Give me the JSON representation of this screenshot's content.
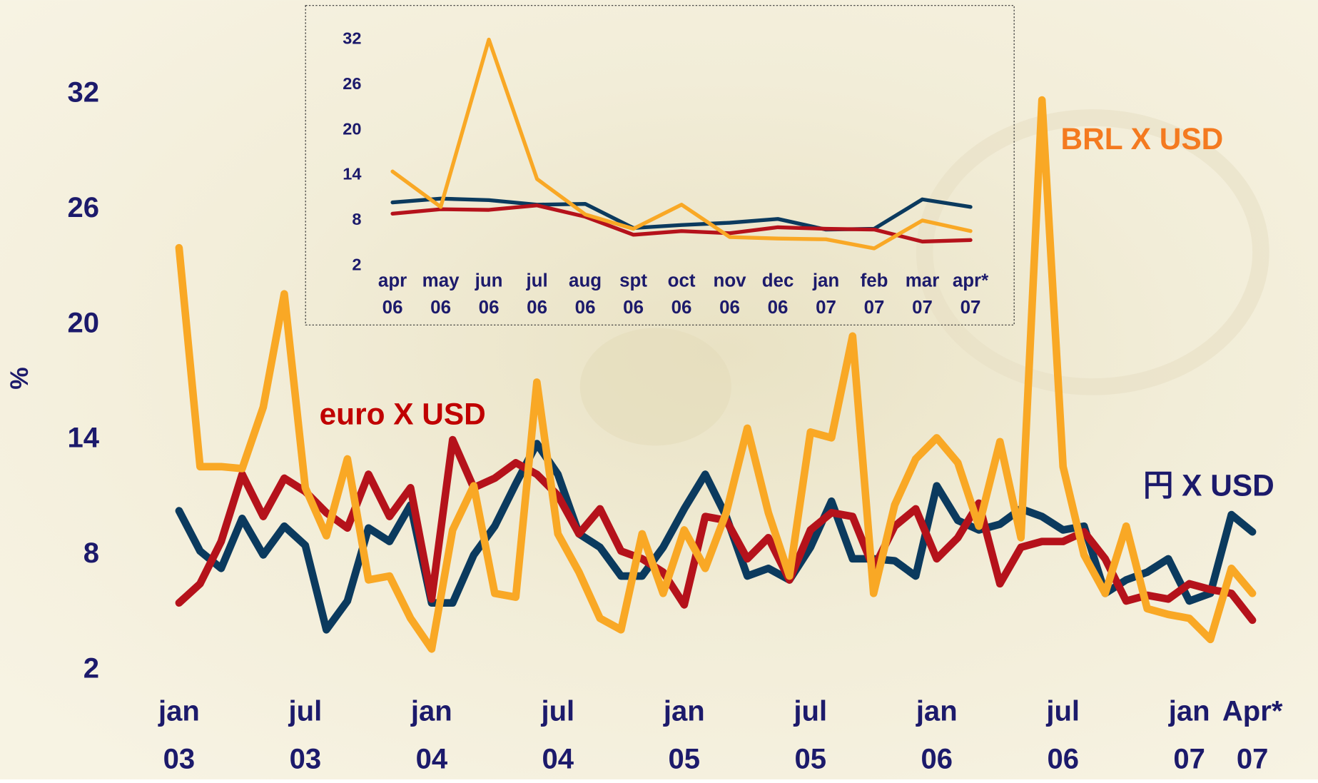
{
  "chart_data": [
    {
      "type": "line",
      "y_label": "%",
      "categories": [
        [
          "jan",
          "03"
        ],
        null,
        null,
        null,
        null,
        null,
        [
          "jul",
          "03"
        ],
        null,
        null,
        null,
        null,
        null,
        [
          "jan",
          "04"
        ],
        null,
        null,
        null,
        null,
        null,
        [
          "jul",
          "04"
        ],
        null,
        null,
        null,
        null,
        null,
        [
          "jan",
          "05"
        ],
        null,
        null,
        null,
        null,
        null,
        [
          "jul",
          "05"
        ],
        null,
        null,
        null,
        null,
        null,
        [
          "jan",
          "06"
        ],
        null,
        null,
        null,
        null,
        null,
        [
          "jul",
          "06"
        ],
        null,
        null,
        null,
        null,
        null,
        [
          "jan",
          "07"
        ],
        null,
        null,
        [
          "Apr*",
          "07"
        ]
      ],
      "ylim": [
        2,
        32
      ],
      "yticks": [
        2,
        8,
        14,
        20,
        26,
        32
      ],
      "series": [
        {
          "name": "BRL X USD",
          "color": "#f9a825",
          "values": [
            24.0,
            12.6,
            12.6,
            12.5,
            15.7,
            21.6,
            11.5,
            9.0,
            13.0,
            6.7,
            6.9,
            4.7,
            3.1,
            9.3,
            11.6,
            6.0,
            5.8,
            17.0,
            9.1,
            7.1,
            4.7,
            4.1,
            9.1,
            6.0,
            9.3,
            7.3,
            10.2,
            14.6,
            10.2,
            6.9,
            14.4,
            14.1,
            19.4,
            6.0,
            10.6,
            13.0,
            14.1,
            12.8,
            9.5,
            13.9,
            8.9,
            31.7,
            12.6,
            8.0,
            6.0,
            9.5,
            5.2,
            4.9,
            4.7,
            3.6,
            7.3,
            6.0
          ]
        },
        {
          "name": "euro X USD",
          "color": "#b5121b",
          "values": [
            5.5,
            6.5,
            8.7,
            12.2,
            10.0,
            12.0,
            11.3,
            10.2,
            9.4,
            12.2,
            10.0,
            11.5,
            5.7,
            14.0,
            11.5,
            12.0,
            12.8,
            12.2,
            11.1,
            9.1,
            10.4,
            8.2,
            7.8,
            7.1,
            5.4,
            10.0,
            9.8,
            7.8,
            8.9,
            6.7,
            9.3,
            10.2,
            10.0,
            7.3,
            9.5,
            10.4,
            7.8,
            8.9,
            10.7,
            6.5,
            8.4,
            8.7,
            8.7,
            9.2,
            7.8,
            5.6,
            5.9,
            5.7,
            6.5,
            6.2,
            6.0,
            4.6
          ]
        },
        {
          "name": "円 X USD",
          "color": "#0b3a5e",
          "values": [
            10.3,
            8.2,
            7.3,
            9.9,
            8.0,
            9.5,
            8.5,
            4.1,
            5.6,
            9.4,
            8.7,
            10.6,
            5.5,
            5.5,
            8.0,
            9.5,
            11.7,
            13.8,
            12.2,
            9.1,
            8.4,
            6.9,
            6.9,
            8.4,
            10.4,
            12.2,
            10.0,
            6.9,
            7.3,
            6.7,
            8.4,
            10.8,
            7.8,
            7.8,
            7.7,
            6.9,
            11.6,
            9.8,
            9.3,
            9.6,
            10.4,
            10.0,
            9.3,
            9.5,
            6.0,
            6.7,
            7.1,
            7.8,
            5.6,
            6.0,
            10.1,
            9.2
          ]
        }
      ]
    },
    {
      "type": "line",
      "categories": [
        [
          "apr",
          "06"
        ],
        [
          "may",
          "06"
        ],
        [
          "jun",
          "06"
        ],
        [
          "jul",
          "06"
        ],
        [
          "aug",
          "06"
        ],
        [
          "spt",
          "06"
        ],
        [
          "oct",
          "06"
        ],
        [
          "nov",
          "06"
        ],
        [
          "dec",
          "06"
        ],
        [
          "jan",
          "07"
        ],
        [
          "feb",
          "07"
        ],
        [
          "mar",
          "07"
        ],
        [
          "apr*",
          "07"
        ]
      ],
      "ylim": [
        2,
        32
      ],
      "yticks": [
        2,
        8,
        14,
        20,
        26,
        32
      ],
      "series": [
        {
          "color": "#f9a825",
          "values": [
            14.5,
            9.8,
            32,
            13.5,
            8.8,
            6.9,
            10.1,
            5.8,
            5.6,
            5.5,
            4.3,
            8.0,
            6.6
          ]
        },
        {
          "color": "#b5121b",
          "values": [
            8.9,
            9.5,
            9.4,
            10.0,
            8.5,
            6.1,
            6.6,
            6.3,
            7.1,
            6.9,
            6.8,
            5.2,
            5.4
          ]
        },
        {
          "color": "#0b3a5e",
          "values": [
            10.4,
            10.9,
            10.7,
            10.1,
            10.2,
            7.0,
            7.4,
            7.7,
            8.2,
            6.8,
            6.9,
            10.8,
            9.8
          ]
        }
      ]
    }
  ]
}
